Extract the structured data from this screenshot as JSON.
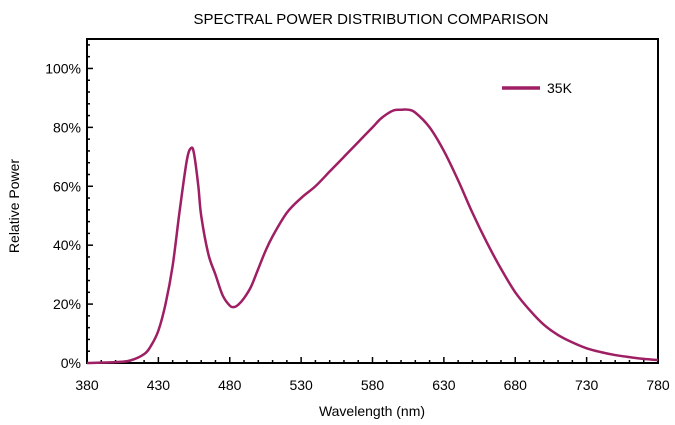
{
  "chart_data": {
    "type": "line",
    "title": "SPECTRAL POWER DISTRIBUTION COMPARISON",
    "xlabel": "Wavelength (nm)",
    "ylabel": "Relative Power",
    "xlim": [
      380,
      780
    ],
    "ylim": [
      0,
      1.1
    ],
    "x_ticks": [
      380,
      430,
      480,
      530,
      580,
      630,
      680,
      730,
      780
    ],
    "y_ticks": [
      {
        "value": 0,
        "label": "0%"
      },
      {
        "value": 0.2,
        "label": "20%"
      },
      {
        "value": 0.4,
        "label": "40%"
      },
      {
        "value": 0.6,
        "label": "60%"
      },
      {
        "value": 0.8,
        "label": "80%"
      },
      {
        "value": 1.0,
        "label": "100%"
      }
    ],
    "grid": false,
    "legend_position": "top-right",
    "series": [
      {
        "name": "35K",
        "color": "#9e1f63",
        "x": [
          380,
          400,
          410,
          420,
          425,
          430,
          435,
          440,
          445,
          450,
          453,
          455,
          458,
          460,
          465,
          470,
          475,
          480,
          483,
          486,
          490,
          495,
          500,
          505,
          510,
          520,
          530,
          540,
          550,
          560,
          570,
          580,
          585,
          590,
          595,
          600,
          605,
          610,
          620,
          630,
          640,
          650,
          660,
          670,
          680,
          690,
          700,
          710,
          720,
          730,
          740,
          750,
          760,
          770,
          780
        ],
        "y": [
          0.0,
          0.003,
          0.008,
          0.03,
          0.06,
          0.11,
          0.2,
          0.33,
          0.52,
          0.69,
          0.73,
          0.71,
          0.6,
          0.5,
          0.37,
          0.3,
          0.23,
          0.195,
          0.19,
          0.198,
          0.22,
          0.26,
          0.32,
          0.38,
          0.43,
          0.51,
          0.56,
          0.6,
          0.65,
          0.7,
          0.75,
          0.8,
          0.826,
          0.845,
          0.858,
          0.86,
          0.86,
          0.85,
          0.8,
          0.72,
          0.62,
          0.51,
          0.41,
          0.32,
          0.24,
          0.18,
          0.13,
          0.095,
          0.07,
          0.05,
          0.037,
          0.027,
          0.02,
          0.014,
          0.01
        ]
      }
    ]
  }
}
